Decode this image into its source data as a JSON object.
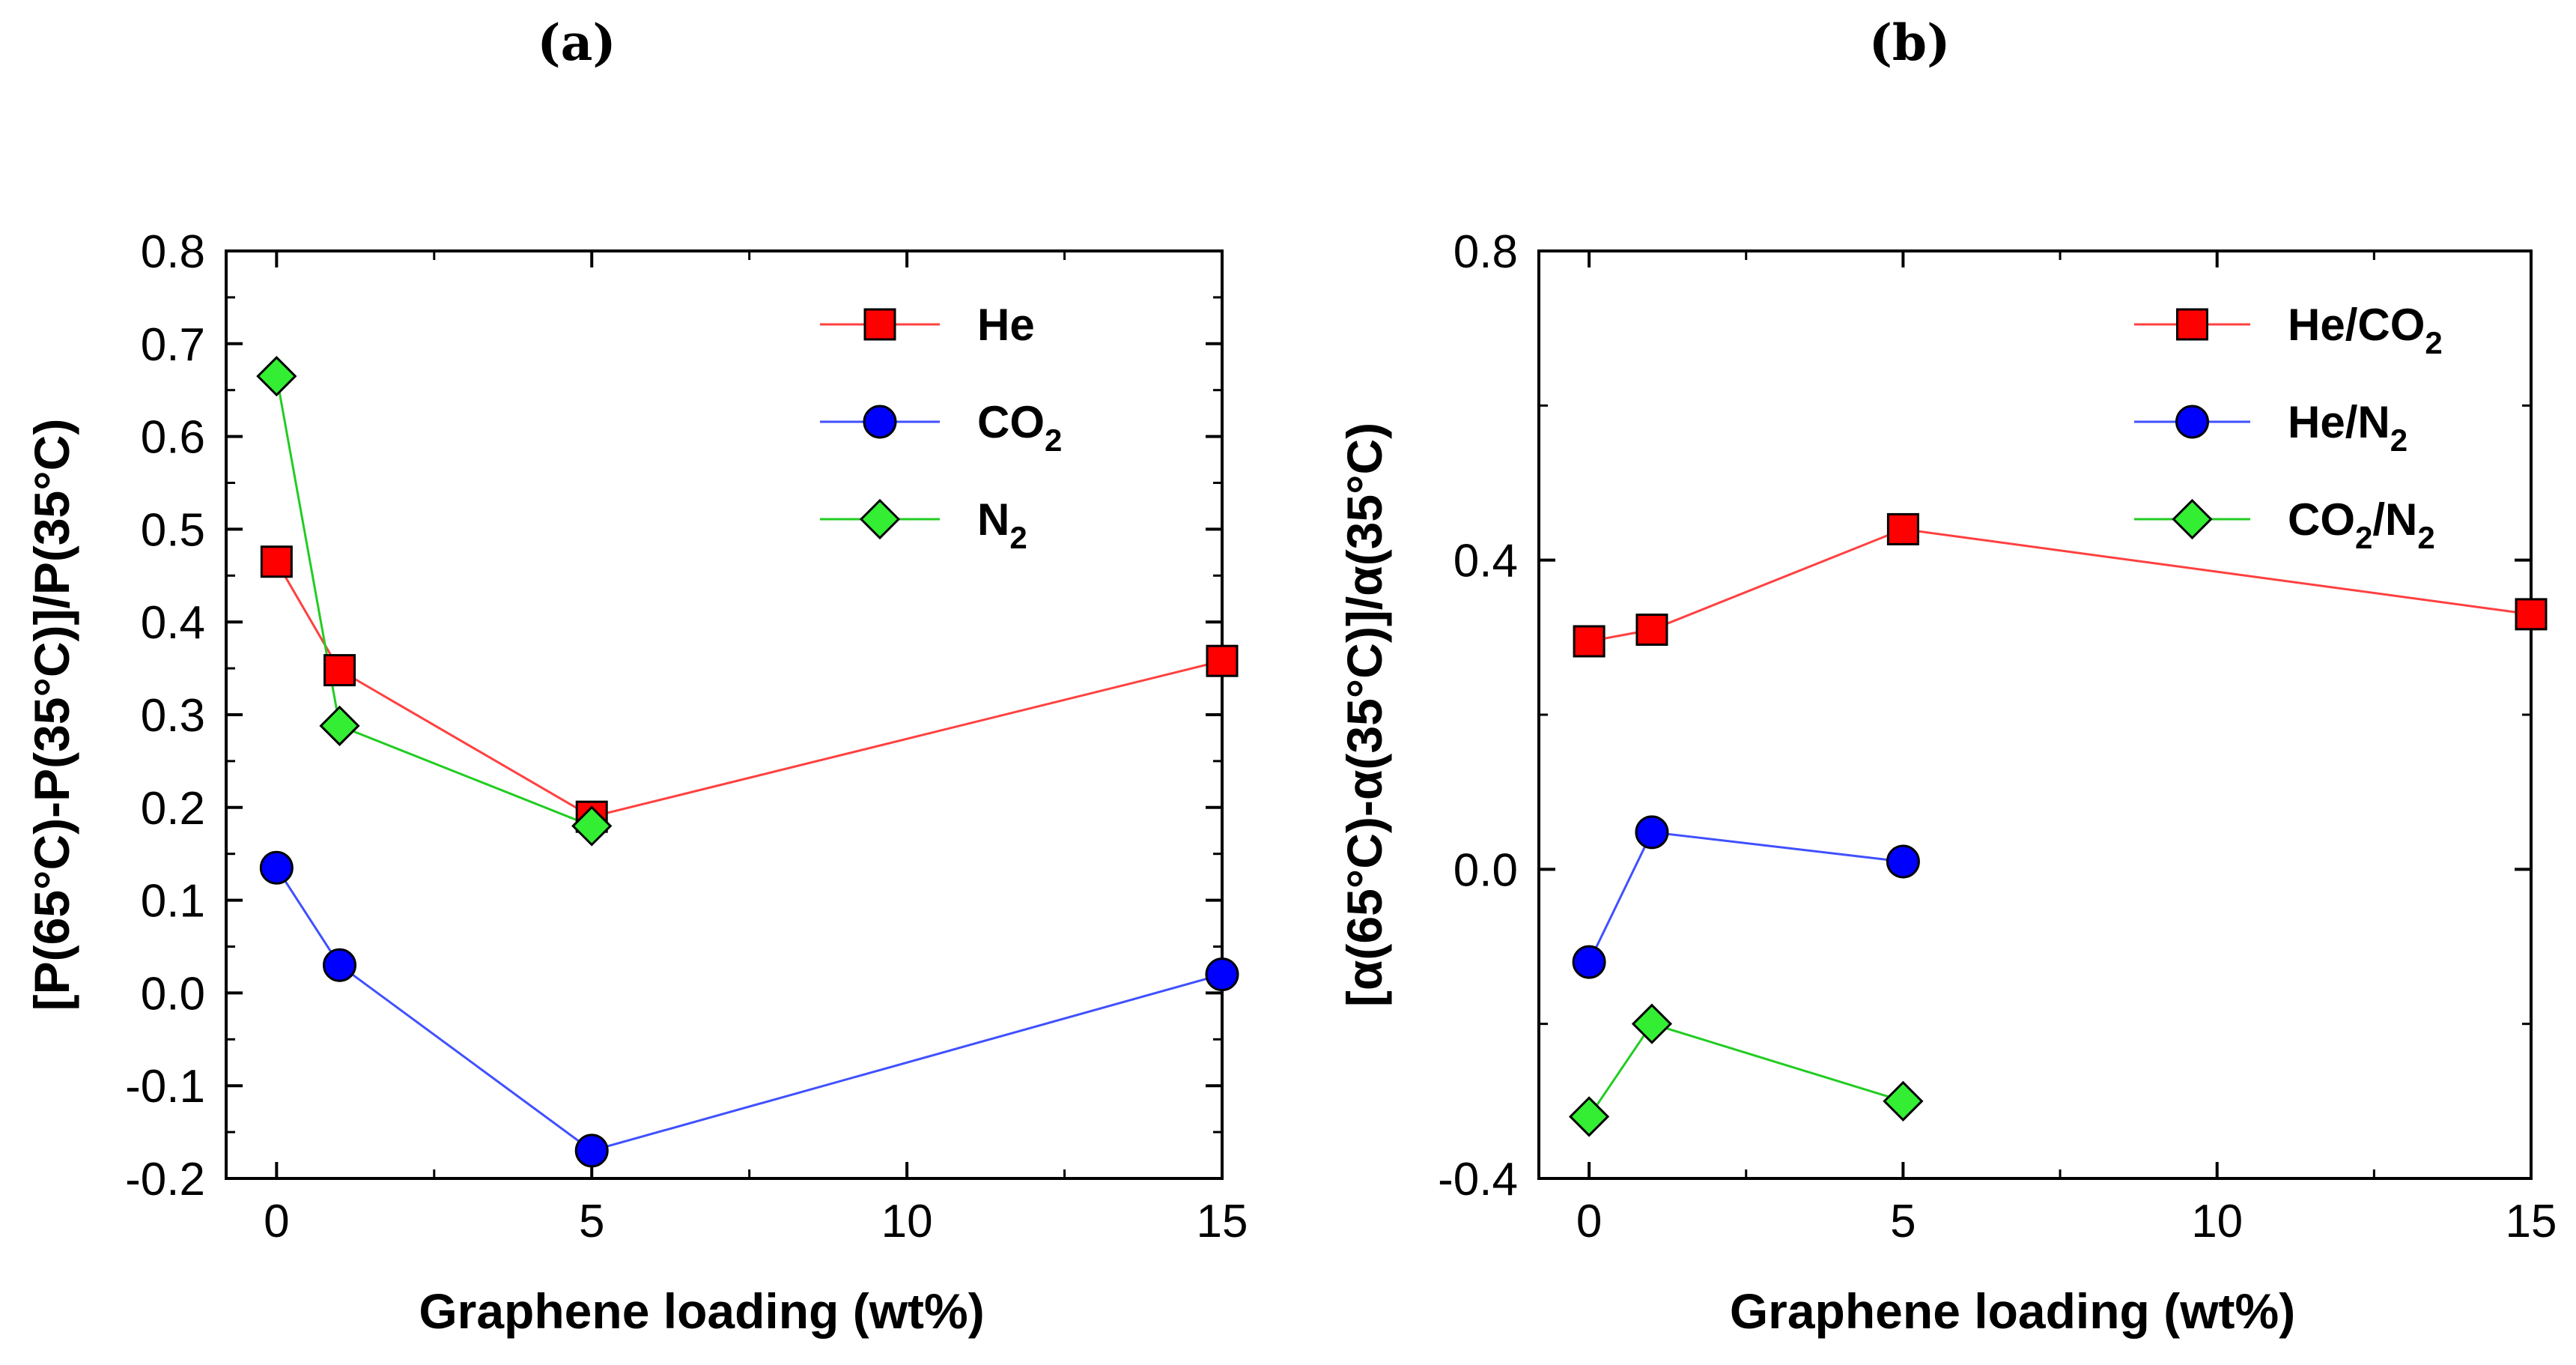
{
  "chart_data": [
    {
      "type": "line",
      "panel_label": "(a)",
      "xlabel": "Graphene loading (wt%)",
      "ylabel": "[P(65°C)-P(35°C)]/P(35°C)",
      "xlim": [
        -0.8,
        15
      ],
      "ylim": [
        -0.2,
        0.8
      ],
      "xticks": [
        "0",
        "5",
        "10",
        "15"
      ],
      "yticks": [
        "-0.2",
        "-0.1",
        "0.0",
        "0.1",
        "0.2",
        "0.3",
        "0.4",
        "0.5",
        "0.6",
        "0.7",
        "0.8"
      ],
      "legend_position": "top-right",
      "series": [
        {
          "name": "He",
          "label_main": "He",
          "label_sub": "",
          "label_tail": "",
          "marker": "square",
          "color": "#ff0000",
          "line_color": "#ff4040",
          "x": [
            0,
            1,
            5,
            15
          ],
          "values": [
            0.465,
            0.348,
            0.19,
            0.358
          ]
        },
        {
          "name": "CO2",
          "label_main": "CO",
          "label_sub": "2",
          "label_tail": "",
          "marker": "circle",
          "color": "#0000ff",
          "line_color": "#4050ff",
          "x": [
            0,
            1,
            5,
            15
          ],
          "values": [
            0.135,
            0.03,
            -0.17,
            0.02
          ]
        },
        {
          "name": "N2",
          "label_main": "N",
          "label_sub": "2",
          "label_tail": "",
          "marker": "diamond",
          "color": "#33ee33",
          "line_color": "#22cc22",
          "x": [
            0,
            1,
            5
          ],
          "values": [
            0.665,
            0.288,
            0.18
          ]
        }
      ]
    },
    {
      "type": "line",
      "panel_label": "(b)",
      "xlabel": "Graphene loading (wt%)",
      "ylabel": "[α(65°C)-α(35°C)]/α(35°C)",
      "xlim": [
        -0.8,
        15
      ],
      "ylim": [
        -0.4,
        0.8
      ],
      "xticks": [
        "0",
        "5",
        "10",
        "15"
      ],
      "yticks": [
        "-0.4",
        "0.0",
        "0.4",
        "0.8"
      ],
      "legend_position": "top-right",
      "series": [
        {
          "name": "He/CO2",
          "label_main": "He/CO",
          "label_sub": "2",
          "label_tail": "",
          "marker": "square",
          "color": "#ff0000",
          "line_color": "#ff4040",
          "x": [
            0,
            1,
            5,
            15
          ],
          "values": [
            0.295,
            0.31,
            0.44,
            0.33
          ]
        },
        {
          "name": "He/N2",
          "label_main": "He/N",
          "label_sub": "2",
          "label_tail": "",
          "marker": "circle",
          "color": "#0000ff",
          "line_color": "#4050ff",
          "x": [
            0,
            1,
            5
          ],
          "values": [
            -0.12,
            0.048,
            0.01
          ]
        },
        {
          "name": "CO2/N2",
          "label_main": "CO",
          "label_sub": "2",
          "label_tail": "/N",
          "label_sub2": "2",
          "marker": "diamond",
          "color": "#33ee33",
          "line_color": "#22cc22",
          "x": [
            0,
            1,
            5
          ],
          "values": [
            -0.32,
            -0.2,
            -0.3
          ]
        }
      ]
    }
  ]
}
